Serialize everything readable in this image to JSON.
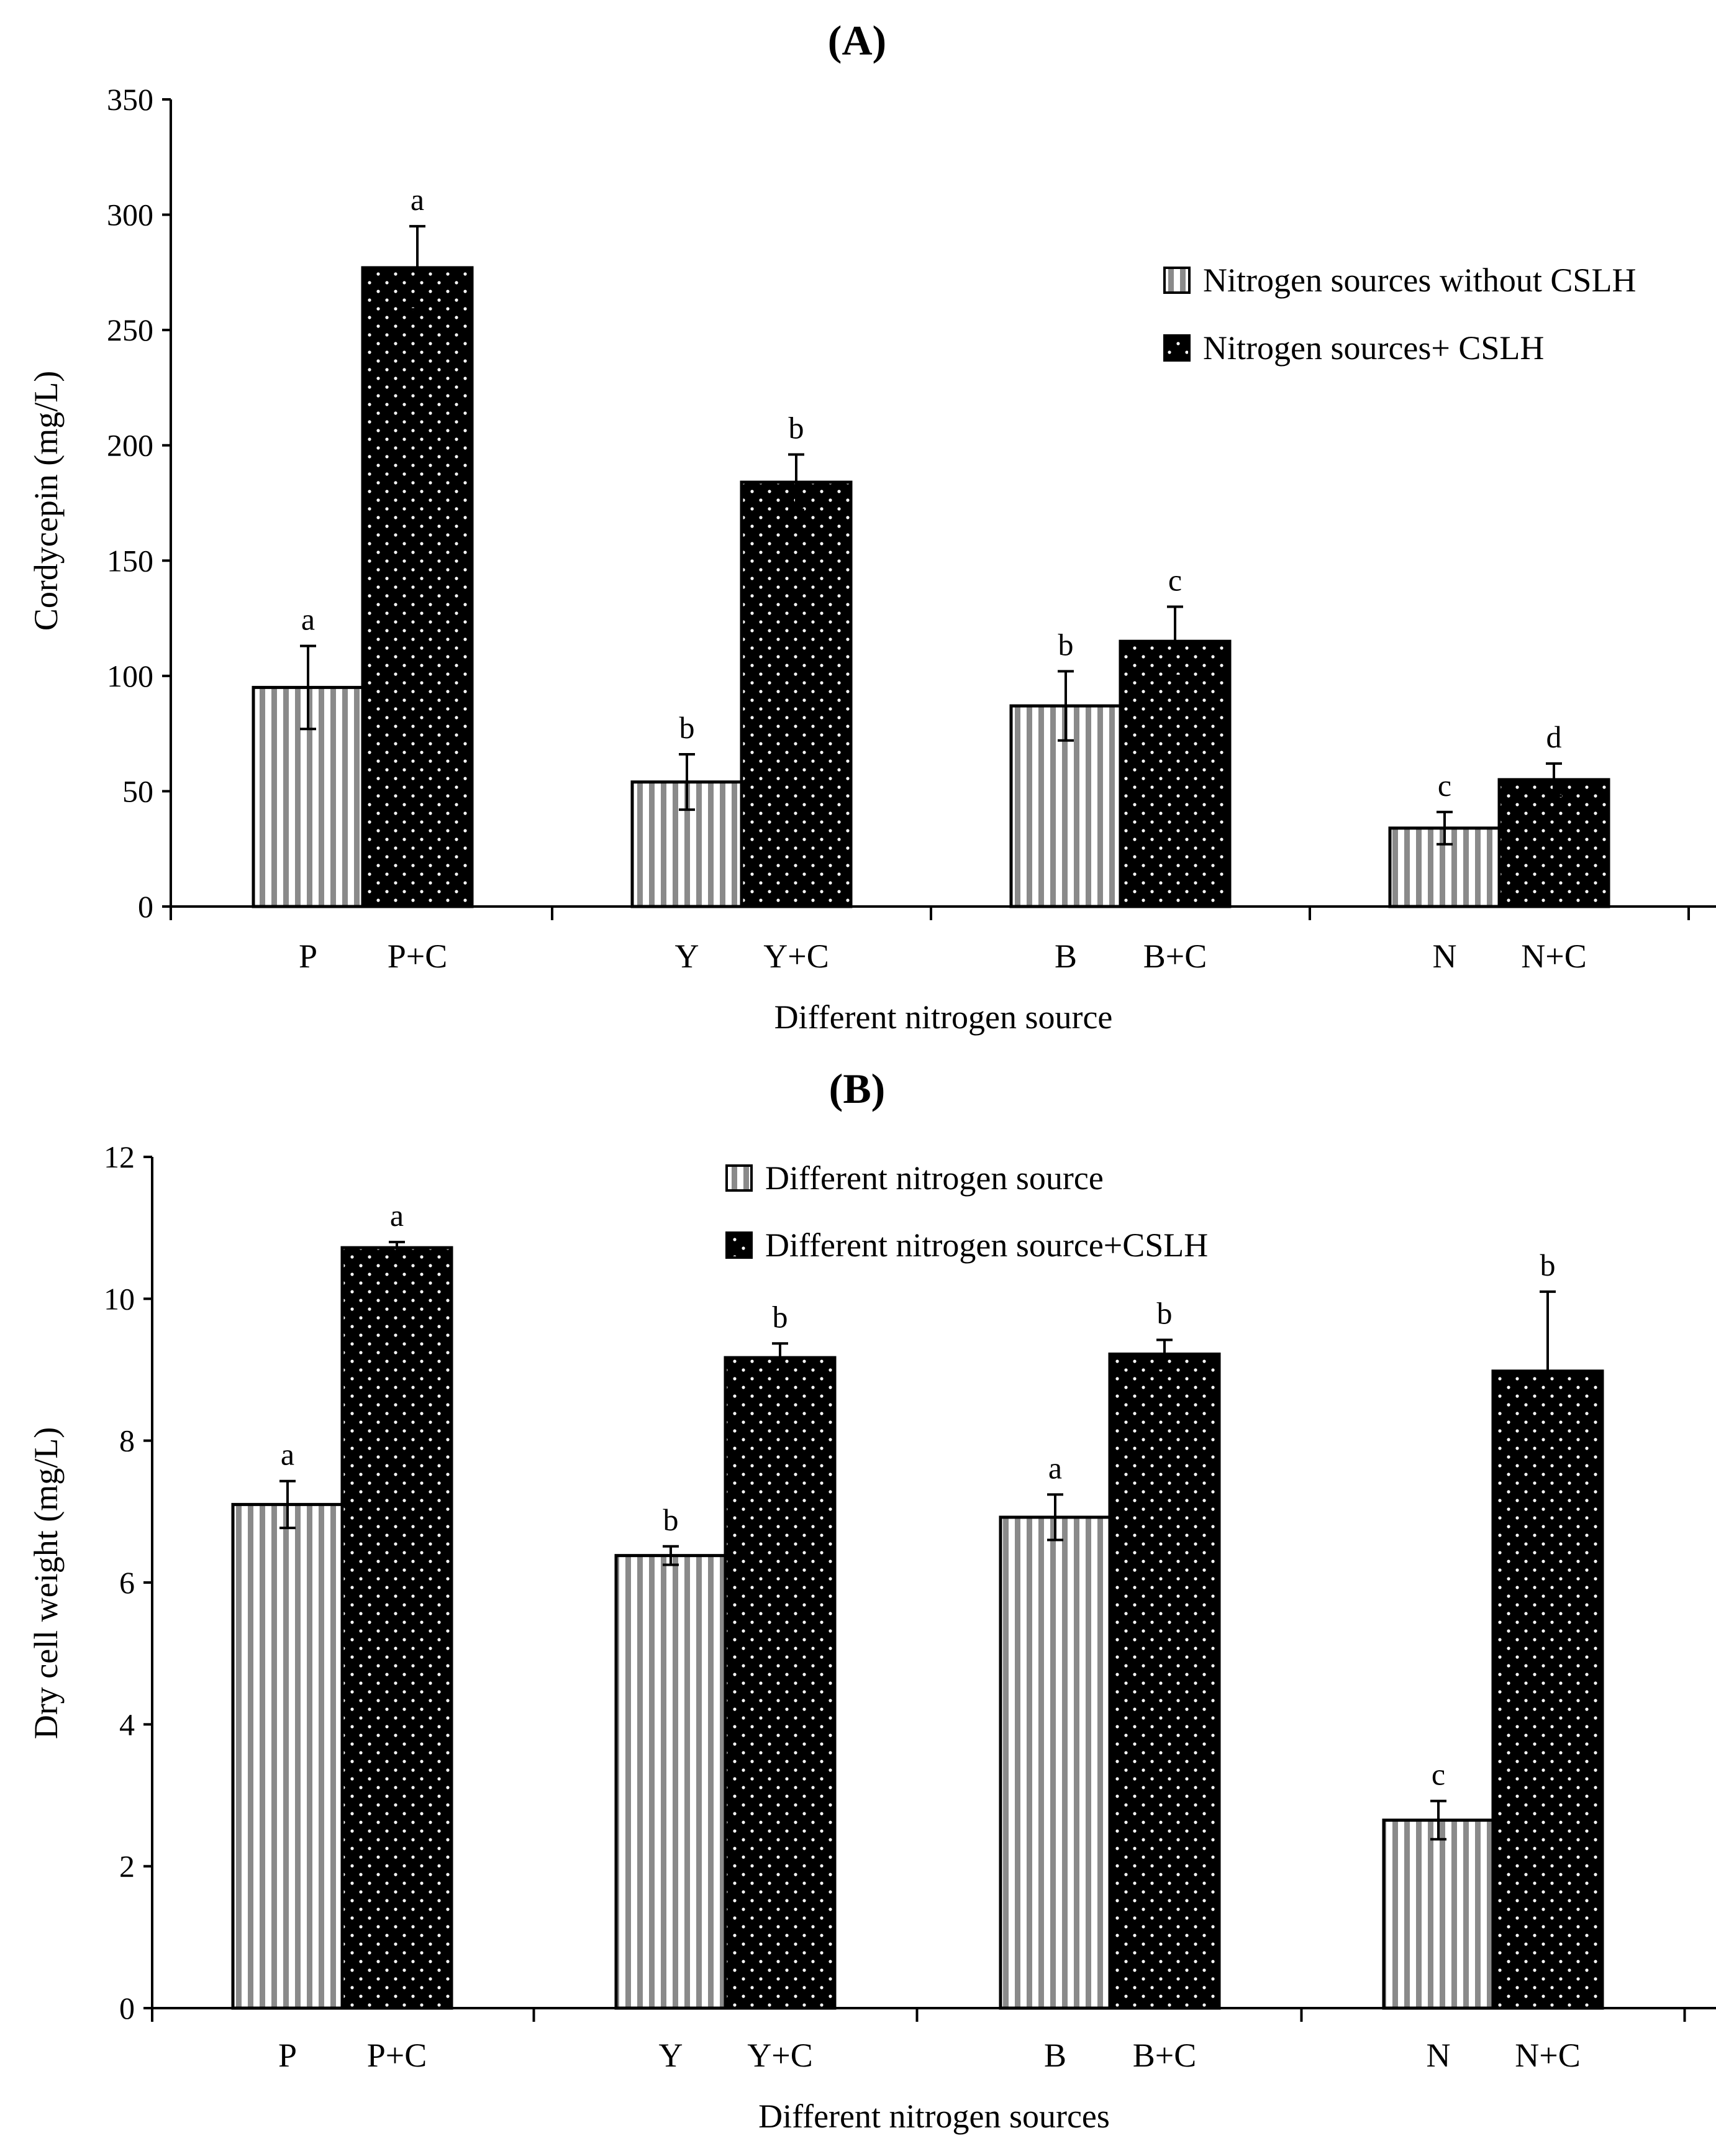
{
  "chart_data": [
    {
      "type": "bar",
      "panel_label": "(A)",
      "ylabel": "Cordycepin (mg/L)",
      "xlabel": "Different nitrogen source",
      "ylim": [
        0,
        350
      ],
      "yticks": [
        0,
        50,
        100,
        150,
        200,
        250,
        300,
        350
      ],
      "categories": [
        "P",
        "P+C",
        "Y",
        "Y+C",
        "B",
        "B+C",
        "N",
        "N+C"
      ],
      "bar_series": [
        "without",
        "with",
        "without",
        "with",
        "without",
        "with",
        "without",
        "with"
      ],
      "values": [
        95,
        277,
        54,
        184,
        87,
        115,
        34,
        55
      ],
      "errors": [
        18,
        18,
        12,
        12,
        15,
        15,
        7,
        7
      ],
      "letters": [
        "a",
        "a",
        "b",
        "b",
        "b",
        "c",
        "c",
        "d"
      ],
      "legend": {
        "position": "top-right",
        "without": "Nitrogen sources without CSLH",
        "with": "Nitrogen sources+ CSLH"
      }
    },
    {
      "type": "bar",
      "panel_label": "(B)",
      "ylabel": "Dry cell weight (mg/L)",
      "xlabel": "Different nitrogen sources",
      "ylim": [
        0,
        12
      ],
      "yticks": [
        0,
        2,
        4,
        6,
        8,
        10,
        12
      ],
      "categories": [
        "P",
        "P+C",
        "Y",
        "Y+C",
        "B",
        "B+C",
        "N",
        "N+C"
      ],
      "bar_series": [
        "without",
        "with",
        "without",
        "with",
        "without",
        "with",
        "without",
        "with"
      ],
      "values": [
        7.1,
        10.72,
        6.38,
        9.17,
        6.92,
        9.22,
        2.65,
        8.98
      ],
      "errors": [
        0.33,
        0.08,
        0.13,
        0.2,
        0.32,
        0.2,
        0.27,
        1.12
      ],
      "letters": [
        "a",
        "a",
        "b",
        "b",
        "a",
        "b",
        "c",
        "b"
      ],
      "legend": {
        "position": "top-center",
        "without": "Different nitrogen source",
        "with": "Different nitrogen source+CSLH"
      }
    }
  ]
}
